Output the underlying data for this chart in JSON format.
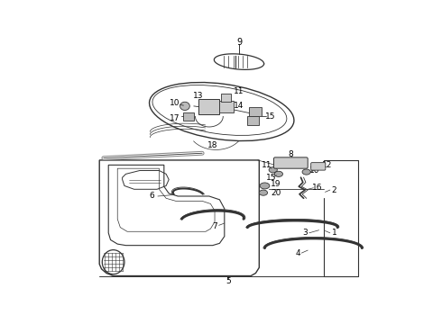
{
  "bg_color": "#ffffff",
  "line_color": "#333333",
  "text_color": "#000000",
  "fig_width": 4.9,
  "fig_height": 3.6,
  "dpi": 100
}
